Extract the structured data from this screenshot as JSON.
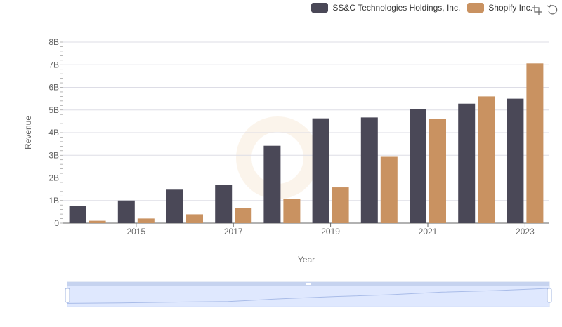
{
  "chart_data": {
    "type": "bar",
    "title": "",
    "xlabel": "Year",
    "ylabel": "Revenue",
    "ylim": [
      0,
      8000000000
    ],
    "y_ticks": [
      "0",
      "1B",
      "2B",
      "3B",
      "4B",
      "5B",
      "6B",
      "7B",
      "8B"
    ],
    "x_tick_labels": [
      "2015",
      "2017",
      "2019",
      "2021",
      "2023"
    ],
    "categories": [
      "2014",
      "2015",
      "2016",
      "2017",
      "2018",
      "2019",
      "2020",
      "2021",
      "2022",
      "2023"
    ],
    "series": [
      {
        "name": "SS&C Technologies Holdings, Inc.",
        "color": "#4a4857",
        "values": [
          770000000,
          1000000000,
          1480000000,
          1680000000,
          3420000000,
          4630000000,
          4670000000,
          5050000000,
          5280000000,
          5500000000
        ]
      },
      {
        "name": "Shopify Inc.",
        "color": "#c99261",
        "values": [
          105000000,
          205000000,
          390000000,
          673000000,
          1070000000,
          1580000000,
          2930000000,
          4610000000,
          5600000000,
          7060000000
        ]
      }
    ],
    "legend_position": "top-right",
    "grid": true
  },
  "toolbox": {
    "zoom_icon": "zoom-icon",
    "restore_icon": "restore-icon"
  },
  "data_zoom": {
    "start_percent": 0,
    "end_percent": 100
  }
}
